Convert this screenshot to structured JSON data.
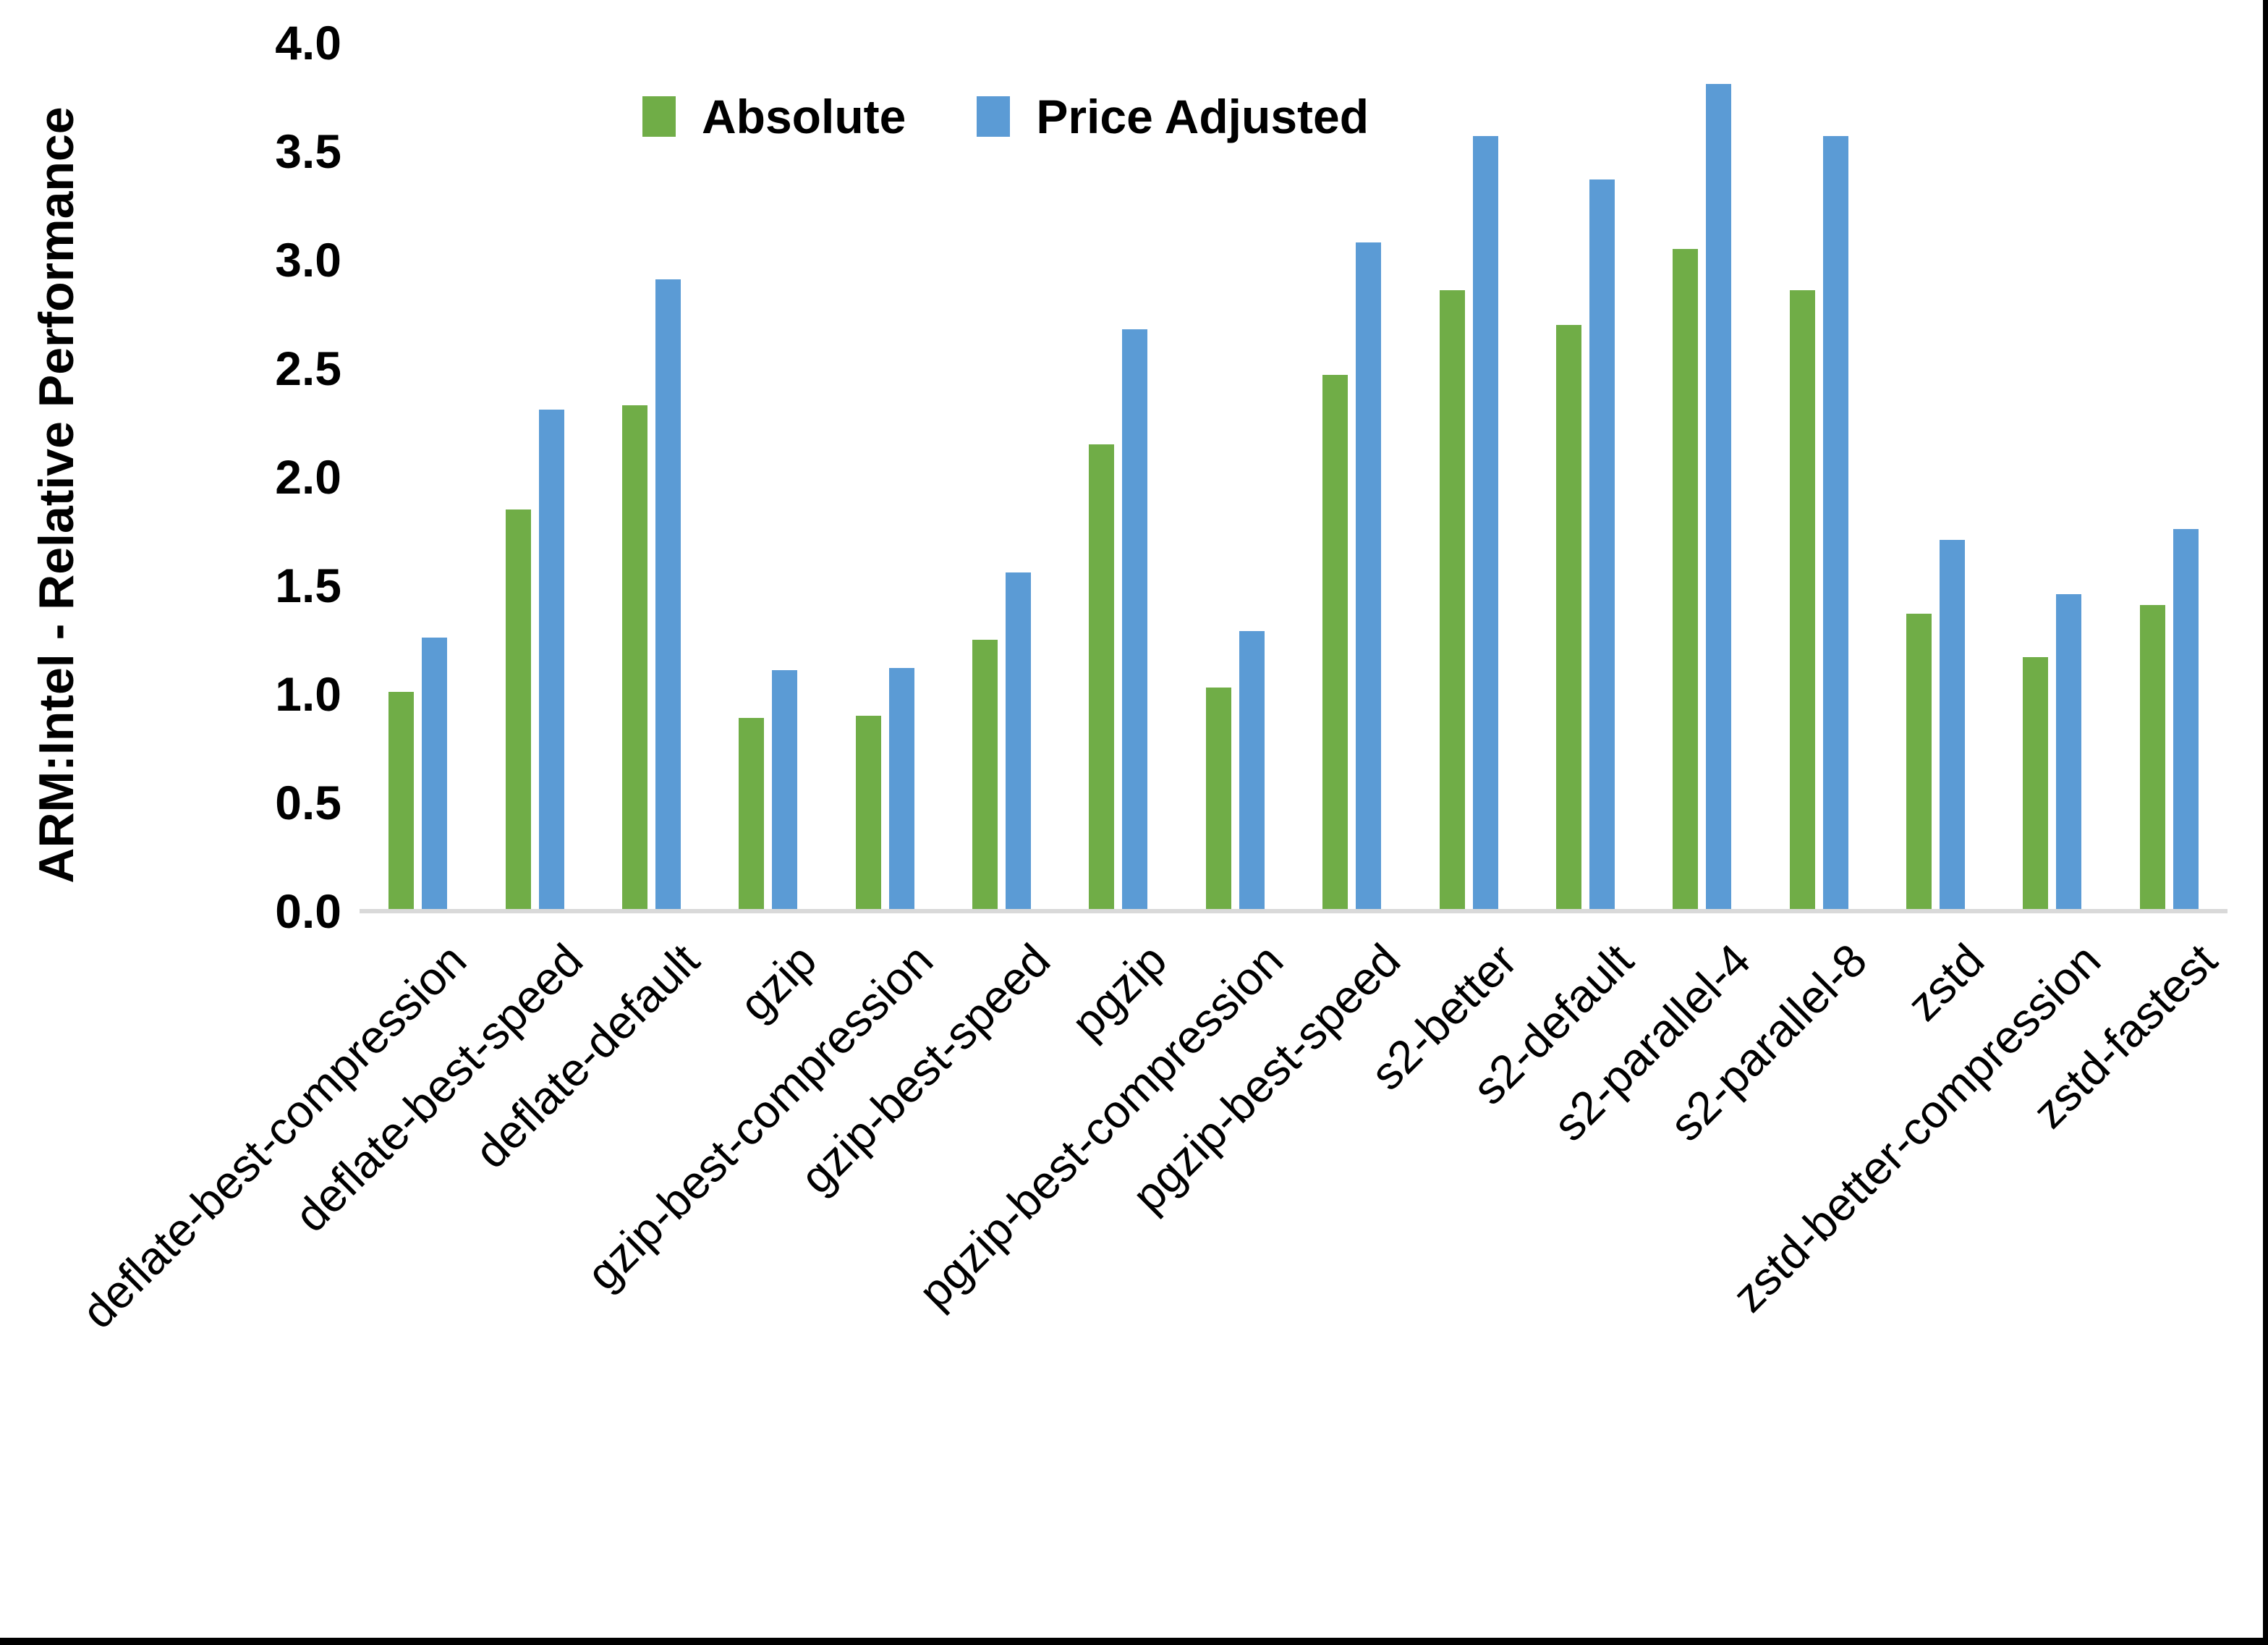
{
  "chart_data": {
    "type": "bar",
    "title": "",
    "xlabel": "",
    "ylabel": "ARM:Intel - Relative Performance",
    "ylim": [
      0.0,
      4.0
    ],
    "ytick_labels": [
      "0.0",
      "0.5",
      "1.0",
      "1.5",
      "2.0",
      "2.5",
      "3.0",
      "3.5",
      "4.0"
    ],
    "grid": false,
    "legend_position": "top-center",
    "axis_line_color": "#D9D9D9",
    "categories": [
      "deflate-best-compression",
      "deflate-best-speed",
      "deflate-default",
      "gzip",
      "gzip-best-compression",
      "gzip-best-speed",
      "pgzip",
      "pgzip-best-compression",
      "pgzip-best-speed",
      "s2-better",
      "s2-default",
      "s2-parallel-4",
      "s2-parallel-8",
      "zstd",
      "zstd-better-compression",
      "zstd-fastest"
    ],
    "series": [
      {
        "name": "Absolute",
        "color": "#70AD47",
        "values": [
          1.01,
          1.85,
          2.33,
          0.89,
          0.9,
          1.25,
          2.15,
          1.03,
          2.47,
          2.86,
          2.7,
          3.05,
          2.86,
          1.37,
          1.17,
          1.41
        ]
      },
      {
        "name": "Price Adjusted",
        "color": "#5B9BD5",
        "values": [
          1.26,
          2.31,
          2.91,
          1.11,
          1.12,
          1.56,
          2.68,
          1.29,
          3.08,
          3.57,
          3.37,
          3.81,
          3.57,
          1.71,
          1.46,
          1.76
        ]
      }
    ]
  },
  "frame": {
    "border_color": "#000000"
  }
}
